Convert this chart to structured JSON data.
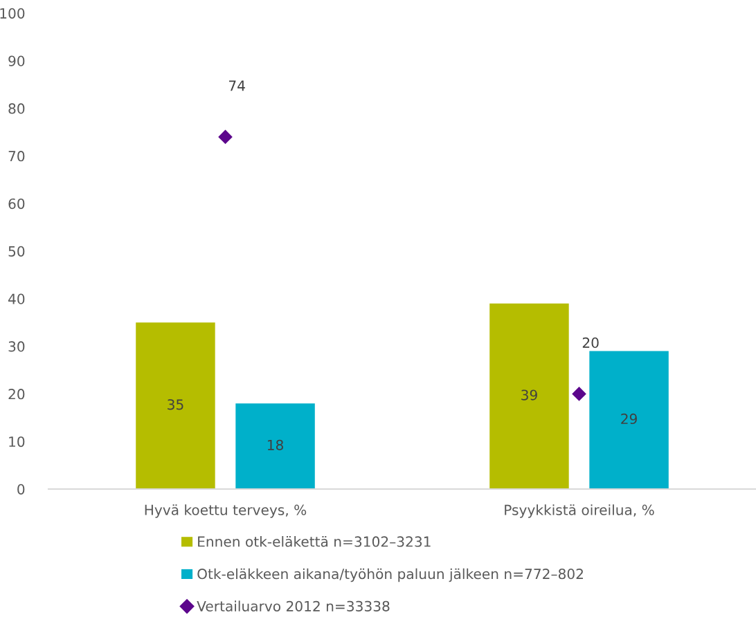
{
  "chart_data": {
    "type": "bar",
    "categories": [
      "Hyvä koettu terveys, %",
      "Psyykkistä oireilua, %"
    ],
    "series": [
      {
        "name": "Ennen otk-eläkettä n=3102–3231",
        "color": "#b5bd00",
        "values": [
          35,
          39
        ]
      },
      {
        "name": "Otk-eläkkeen aikana/työhön paluun jälkeen n=772–802",
        "color": "#00b0ca",
        "values": [
          18,
          29
        ]
      },
      {
        "name": "Vertailuarvo 2012 n=33338",
        "type": "scatter",
        "color": "#5c068c",
        "marker": "diamond",
        "x": [
          "Hyvä koettu terveys, %",
          "Psyykkistä oireilua, %"
        ],
        "values": [
          74,
          20
        ]
      }
    ],
    "ylim": [
      0,
      100
    ],
    "yticks": [
      0,
      10,
      20,
      30,
      40,
      50,
      60,
      70,
      80,
      90,
      100
    ],
    "grid": false,
    "legend": "bottom",
    "data_labels": true
  }
}
